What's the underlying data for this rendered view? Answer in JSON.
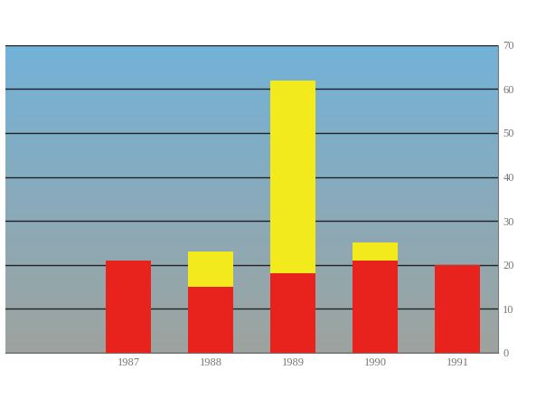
{
  "chart_data": {
    "type": "bar",
    "stacked": true,
    "categories": [
      "1987",
      "1988",
      "1989",
      "1990",
      "1991"
    ],
    "series": [
      {
        "color": "#e8231e",
        "values": [
          21,
          15,
          18,
          21,
          20
        ]
      },
      {
        "color": "#f2ea1c",
        "values": [
          0,
          8,
          44,
          4,
          0
        ]
      }
    ],
    "ylim": [
      0,
      70
    ],
    "yticks": [
      0,
      10,
      20,
      30,
      40,
      50,
      60,
      70
    ],
    "grid": true
  }
}
